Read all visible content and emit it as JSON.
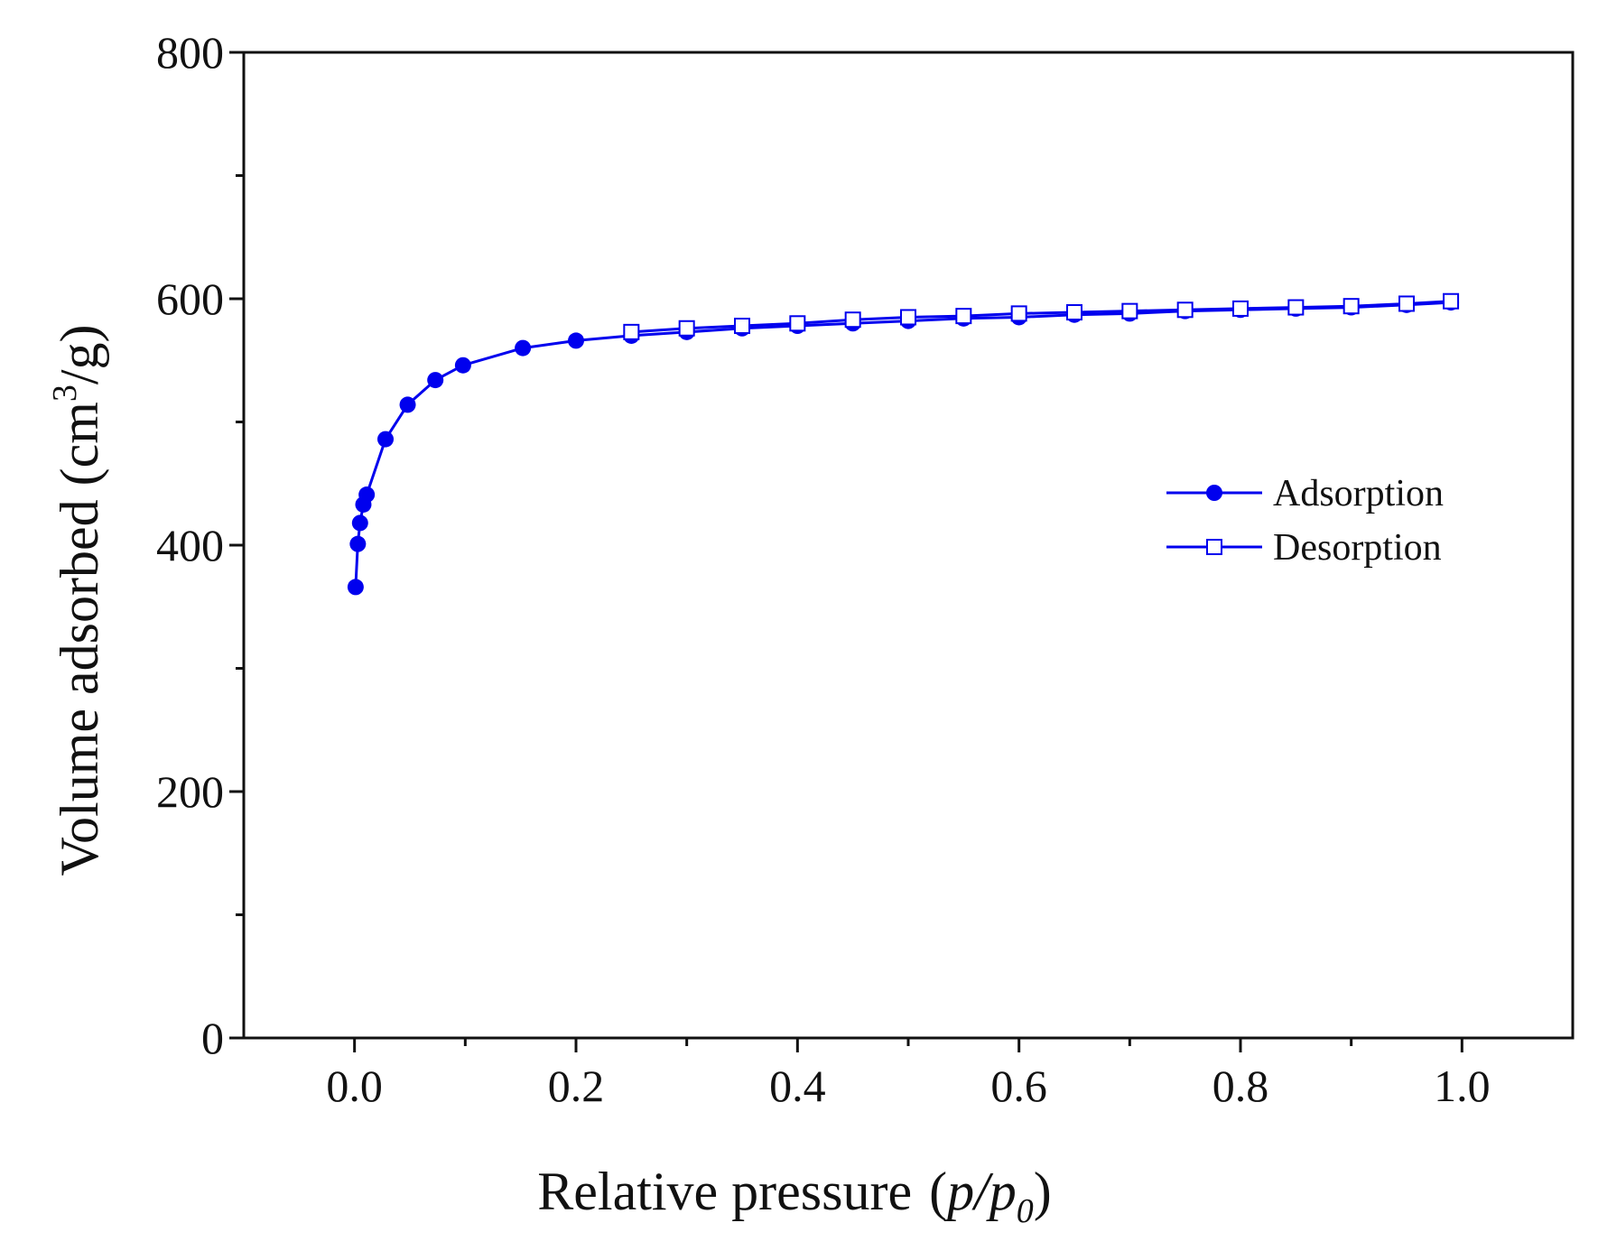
{
  "colors": {
    "series": "#0000ee",
    "axis": "#111111",
    "background": "#ffffff"
  },
  "chart_data": {
    "type": "line",
    "title": "",
    "xlabel": "Relative pressure",
    "xlabel_var": "p/p",
    "xlabel_sub": "0",
    "ylabel": "Volume adsorbed (cm",
    "ylabel_sup": "3",
    "ylabel_tail": "/g)",
    "xlim": [
      -0.1,
      1.1
    ],
    "ylim": [
      0,
      800
    ],
    "x_ticks": [
      0.0,
      0.2,
      0.4,
      0.6,
      0.8,
      1.0
    ],
    "x_tick_labels": [
      "0.0",
      "0.2",
      "0.4",
      "0.6",
      "0.8",
      "1.0"
    ],
    "x_minor_ticks": [
      0.1,
      0.3,
      0.5,
      0.7,
      0.9
    ],
    "y_ticks": [
      0,
      200,
      400,
      600,
      800
    ],
    "y_tick_labels": [
      "0",
      "200",
      "400",
      "600",
      "800"
    ],
    "y_minor_ticks": [
      100,
      300,
      500,
      700
    ],
    "grid": false,
    "legend_position": "right-middle",
    "series": [
      {
        "name": "Adsorption",
        "marker": "filled-circle",
        "x": [
          0.001,
          0.003,
          0.005,
          0.008,
          0.011,
          0.028,
          0.048,
          0.073,
          0.098,
          0.152,
          0.2,
          0.25,
          0.3,
          0.35,
          0.4,
          0.45,
          0.5,
          0.55,
          0.6,
          0.65,
          0.7,
          0.75,
          0.8,
          0.85,
          0.9,
          0.95,
          0.99
        ],
        "y": [
          366,
          401,
          418,
          433,
          441,
          486,
          514,
          534,
          546,
          560,
          566,
          570,
          573,
          576,
          578,
          580,
          582,
          584,
          585,
          587,
          588,
          590,
          591,
          592,
          593,
          595,
          597
        ]
      },
      {
        "name": "Desorption",
        "marker": "open-square",
        "x": [
          0.99,
          0.95,
          0.9,
          0.85,
          0.8,
          0.75,
          0.7,
          0.65,
          0.6,
          0.55,
          0.5,
          0.45,
          0.4,
          0.35,
          0.3,
          0.25
        ],
        "y": [
          598,
          596,
          594,
          593,
          592,
          591,
          590,
          589,
          588,
          586,
          585,
          583,
          580,
          578,
          576,
          573
        ]
      }
    ]
  }
}
